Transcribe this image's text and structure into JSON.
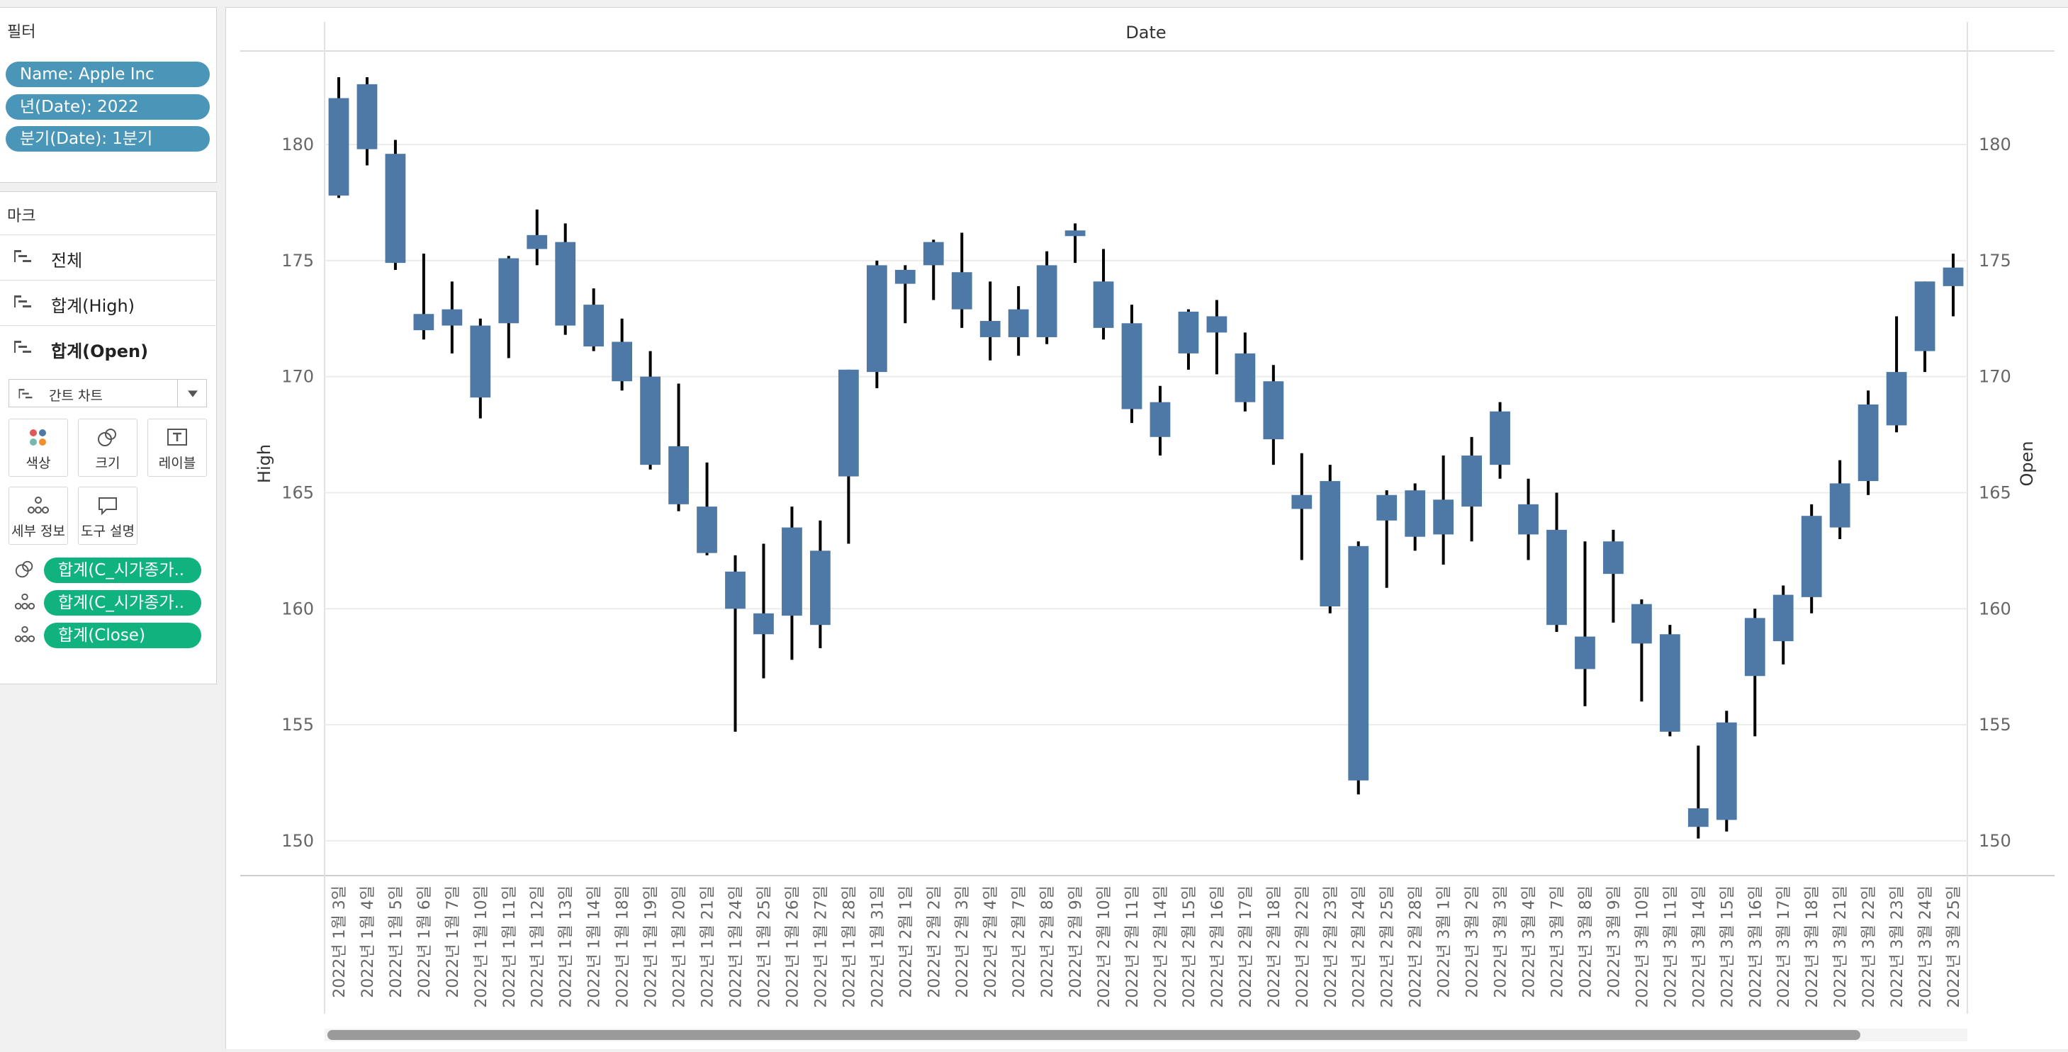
{
  "filters": {
    "title": "필터",
    "items": [
      "Name: Apple Inc",
      "년(Date): 2022",
      "분기(Date): 1분기"
    ]
  },
  "marks": {
    "title": "마크",
    "rows": [
      "전체",
      "합계(High)",
      "합계(Open)"
    ],
    "mark_type": "간트 차트",
    "buttons": [
      "색상",
      "크기",
      "레이블",
      "세부 정보",
      "도구 설명"
    ],
    "pills": [
      "합계(C_시가종가..",
      "합계(C_시가종가..",
      "합계(Close)"
    ]
  },
  "chart_data": {
    "type": "candlestick",
    "title": "Date",
    "ylabel": "High",
    "ylabel_right": "Open",
    "ylim": [
      148.5,
      184.0
    ],
    "yticks": [
      150,
      155,
      160,
      165,
      170,
      175,
      180
    ],
    "grid": true,
    "color": "#4e79a7",
    "wick_color": "#000000",
    "points": [
      {
        "x": "2022년 1월 3일",
        "open": 177.8,
        "close": 182.0,
        "high": 182.9,
        "low": 177.7
      },
      {
        "x": "2022년 1월 4일",
        "open": 182.6,
        "close": 179.8,
        "high": 182.9,
        "low": 179.1
      },
      {
        "x": "2022년 1월 5일",
        "open": 179.6,
        "close": 174.9,
        "high": 180.2,
        "low": 174.6
      },
      {
        "x": "2022년 1월 6일",
        "open": 172.7,
        "close": 172.0,
        "high": 175.3,
        "low": 171.6
      },
      {
        "x": "2022년 1월 7일",
        "open": 172.9,
        "close": 172.2,
        "high": 174.1,
        "low": 171.0
      },
      {
        "x": "2022년 1월 10일",
        "open": 169.1,
        "close": 172.2,
        "high": 172.5,
        "low": 168.2
      },
      {
        "x": "2022년 1월 11일",
        "open": 172.3,
        "close": 175.1,
        "high": 175.2,
        "low": 170.8
      },
      {
        "x": "2022년 1월 12일",
        "open": 176.1,
        "close": 175.5,
        "high": 177.2,
        "low": 174.8
      },
      {
        "x": "2022년 1월 13일",
        "open": 175.8,
        "close": 172.2,
        "high": 176.6,
        "low": 171.8
      },
      {
        "x": "2022년 1월 14일",
        "open": 171.3,
        "close": 173.1,
        "high": 173.8,
        "low": 171.1
      },
      {
        "x": "2022년 1월 18일",
        "open": 171.5,
        "close": 169.8,
        "high": 172.5,
        "low": 169.4
      },
      {
        "x": "2022년 1월 19일",
        "open": 170.0,
        "close": 166.2,
        "high": 171.1,
        "low": 166.0
      },
      {
        "x": "2022년 1월 20일",
        "open": 167.0,
        "close": 164.5,
        "high": 169.7,
        "low": 164.2
      },
      {
        "x": "2022년 1월 21일",
        "open": 164.4,
        "close": 162.4,
        "high": 166.3,
        "low": 162.3
      },
      {
        "x": "2022년 1월 24일",
        "open": 160.0,
        "close": 161.6,
        "high": 162.3,
        "low": 154.7
      },
      {
        "x": "2022년 1월 25일",
        "open": 158.9,
        "close": 159.8,
        "high": 162.8,
        "low": 157.0
      },
      {
        "x": "2022년 1월 26일",
        "open": 163.5,
        "close": 159.7,
        "high": 164.4,
        "low": 157.8
      },
      {
        "x": "2022년 1월 27일",
        "open": 162.5,
        "close": 159.3,
        "high": 163.8,
        "low": 158.3
      },
      {
        "x": "2022년 1월 28일",
        "open": 165.7,
        "close": 170.3,
        "high": 170.3,
        "low": 162.8
      },
      {
        "x": "2022년 1월 31일",
        "open": 170.2,
        "close": 174.8,
        "high": 175.0,
        "low": 169.5
      },
      {
        "x": "2022년 2월 1일",
        "open": 174.0,
        "close": 174.6,
        "high": 174.8,
        "low": 172.3
      },
      {
        "x": "2022년 2월 2일",
        "open": 174.8,
        "close": 175.8,
        "high": 175.9,
        "low": 173.3
      },
      {
        "x": "2022년 2월 3일",
        "open": 174.5,
        "close": 172.9,
        "high": 176.2,
        "low": 172.1
      },
      {
        "x": "2022년 2월 4일",
        "open": 171.7,
        "close": 172.4,
        "high": 174.1,
        "low": 170.7
      },
      {
        "x": "2022년 2월 7일",
        "open": 172.9,
        "close": 171.7,
        "high": 173.9,
        "low": 170.9
      },
      {
        "x": "2022년 2월 8일",
        "open": 171.7,
        "close": 174.8,
        "high": 175.4,
        "low": 171.4
      },
      {
        "x": "2022년 2월 9일",
        "open": 176.1,
        "close": 176.3,
        "high": 176.6,
        "low": 174.9
      },
      {
        "x": "2022년 2월 10일",
        "open": 174.1,
        "close": 172.1,
        "high": 175.5,
        "low": 171.6
      },
      {
        "x": "2022년 2월 11일",
        "open": 172.3,
        "close": 168.6,
        "high": 173.1,
        "low": 168.0
      },
      {
        "x": "2022년 2월 14일",
        "open": 167.4,
        "close": 168.9,
        "high": 169.6,
        "low": 166.6
      },
      {
        "x": "2022년 2월 15일",
        "open": 171.0,
        "close": 172.8,
        "high": 172.9,
        "low": 170.3
      },
      {
        "x": "2022년 2월 16일",
        "open": 171.9,
        "close": 172.6,
        "high": 173.3,
        "low": 170.1
      },
      {
        "x": "2022년 2월 17일",
        "open": 171.0,
        "close": 168.9,
        "high": 171.9,
        "low": 168.5
      },
      {
        "x": "2022년 2월 18일",
        "open": 169.8,
        "close": 167.3,
        "high": 170.5,
        "low": 166.2
      },
      {
        "x": "2022년 2월 22일",
        "open": 164.9,
        "close": 164.3,
        "high": 166.7,
        "low": 162.1
      },
      {
        "x": "2022년 2월 23일",
        "open": 165.5,
        "close": 160.1,
        "high": 166.2,
        "low": 159.8
      },
      {
        "x": "2022년 2월 24일",
        "open": 152.6,
        "close": 162.7,
        "high": 162.9,
        "low": 152.0
      },
      {
        "x": "2022년 2월 25일",
        "open": 163.8,
        "close": 164.9,
        "high": 165.1,
        "low": 160.9
      },
      {
        "x": "2022년 2월 28일",
        "open": 163.1,
        "close": 165.1,
        "high": 165.4,
        "low": 162.5
      },
      {
        "x": "2022년 3월 1일",
        "open": 164.7,
        "close": 163.2,
        "high": 166.6,
        "low": 161.9
      },
      {
        "x": "2022년 3월 2일",
        "open": 164.4,
        "close": 166.6,
        "high": 167.4,
        "low": 162.9
      },
      {
        "x": "2022년 3월 3일",
        "open": 168.5,
        "close": 166.2,
        "high": 168.9,
        "low": 165.6
      },
      {
        "x": "2022년 3월 4일",
        "open": 164.5,
        "close": 163.2,
        "high": 165.6,
        "low": 162.1
      },
      {
        "x": "2022년 3월 7일",
        "open": 163.4,
        "close": 159.3,
        "high": 165.0,
        "low": 159.0
      },
      {
        "x": "2022년 3월 8일",
        "open": 158.8,
        "close": 157.4,
        "high": 162.9,
        "low": 155.8
      },
      {
        "x": "2022년 3월 9일",
        "open": 161.5,
        "close": 162.9,
        "high": 163.4,
        "low": 159.4
      },
      {
        "x": "2022년 3월 10일",
        "open": 160.2,
        "close": 158.5,
        "high": 160.4,
        "low": 156.0
      },
      {
        "x": "2022년 3월 11일",
        "open": 158.9,
        "close": 154.7,
        "high": 159.3,
        "low": 154.5
      },
      {
        "x": "2022년 3월 14일",
        "open": 151.4,
        "close": 150.6,
        "high": 154.1,
        "low": 150.1
      },
      {
        "x": "2022년 3월 15일",
        "open": 150.9,
        "close": 155.1,
        "high": 155.6,
        "low": 150.4
      },
      {
        "x": "2022년 3월 16일",
        "open": 157.1,
        "close": 159.6,
        "high": 160.0,
        "low": 154.5
      },
      {
        "x": "2022년 3월 17일",
        "open": 158.6,
        "close": 160.6,
        "high": 161.0,
        "low": 157.6
      },
      {
        "x": "2022년 3월 18일",
        "open": 160.5,
        "close": 164.0,
        "high": 164.5,
        "low": 159.8
      },
      {
        "x": "2022년 3월 21일",
        "open": 163.5,
        "close": 165.4,
        "high": 166.4,
        "low": 163.0
      },
      {
        "x": "2022년 3월 22일",
        "open": 165.5,
        "close": 168.8,
        "high": 169.4,
        "low": 164.9
      },
      {
        "x": "2022년 3월 23일",
        "open": 167.9,
        "close": 170.2,
        "high": 172.6,
        "low": 167.6
      },
      {
        "x": "2022년 3월 24일",
        "open": 171.1,
        "close": 174.1,
        "high": 174.1,
        "low": 170.2
      },
      {
        "x": "2022년 3월 25일",
        "open": 173.9,
        "close": 174.7,
        "high": 175.3,
        "low": 172.6
      }
    ]
  }
}
